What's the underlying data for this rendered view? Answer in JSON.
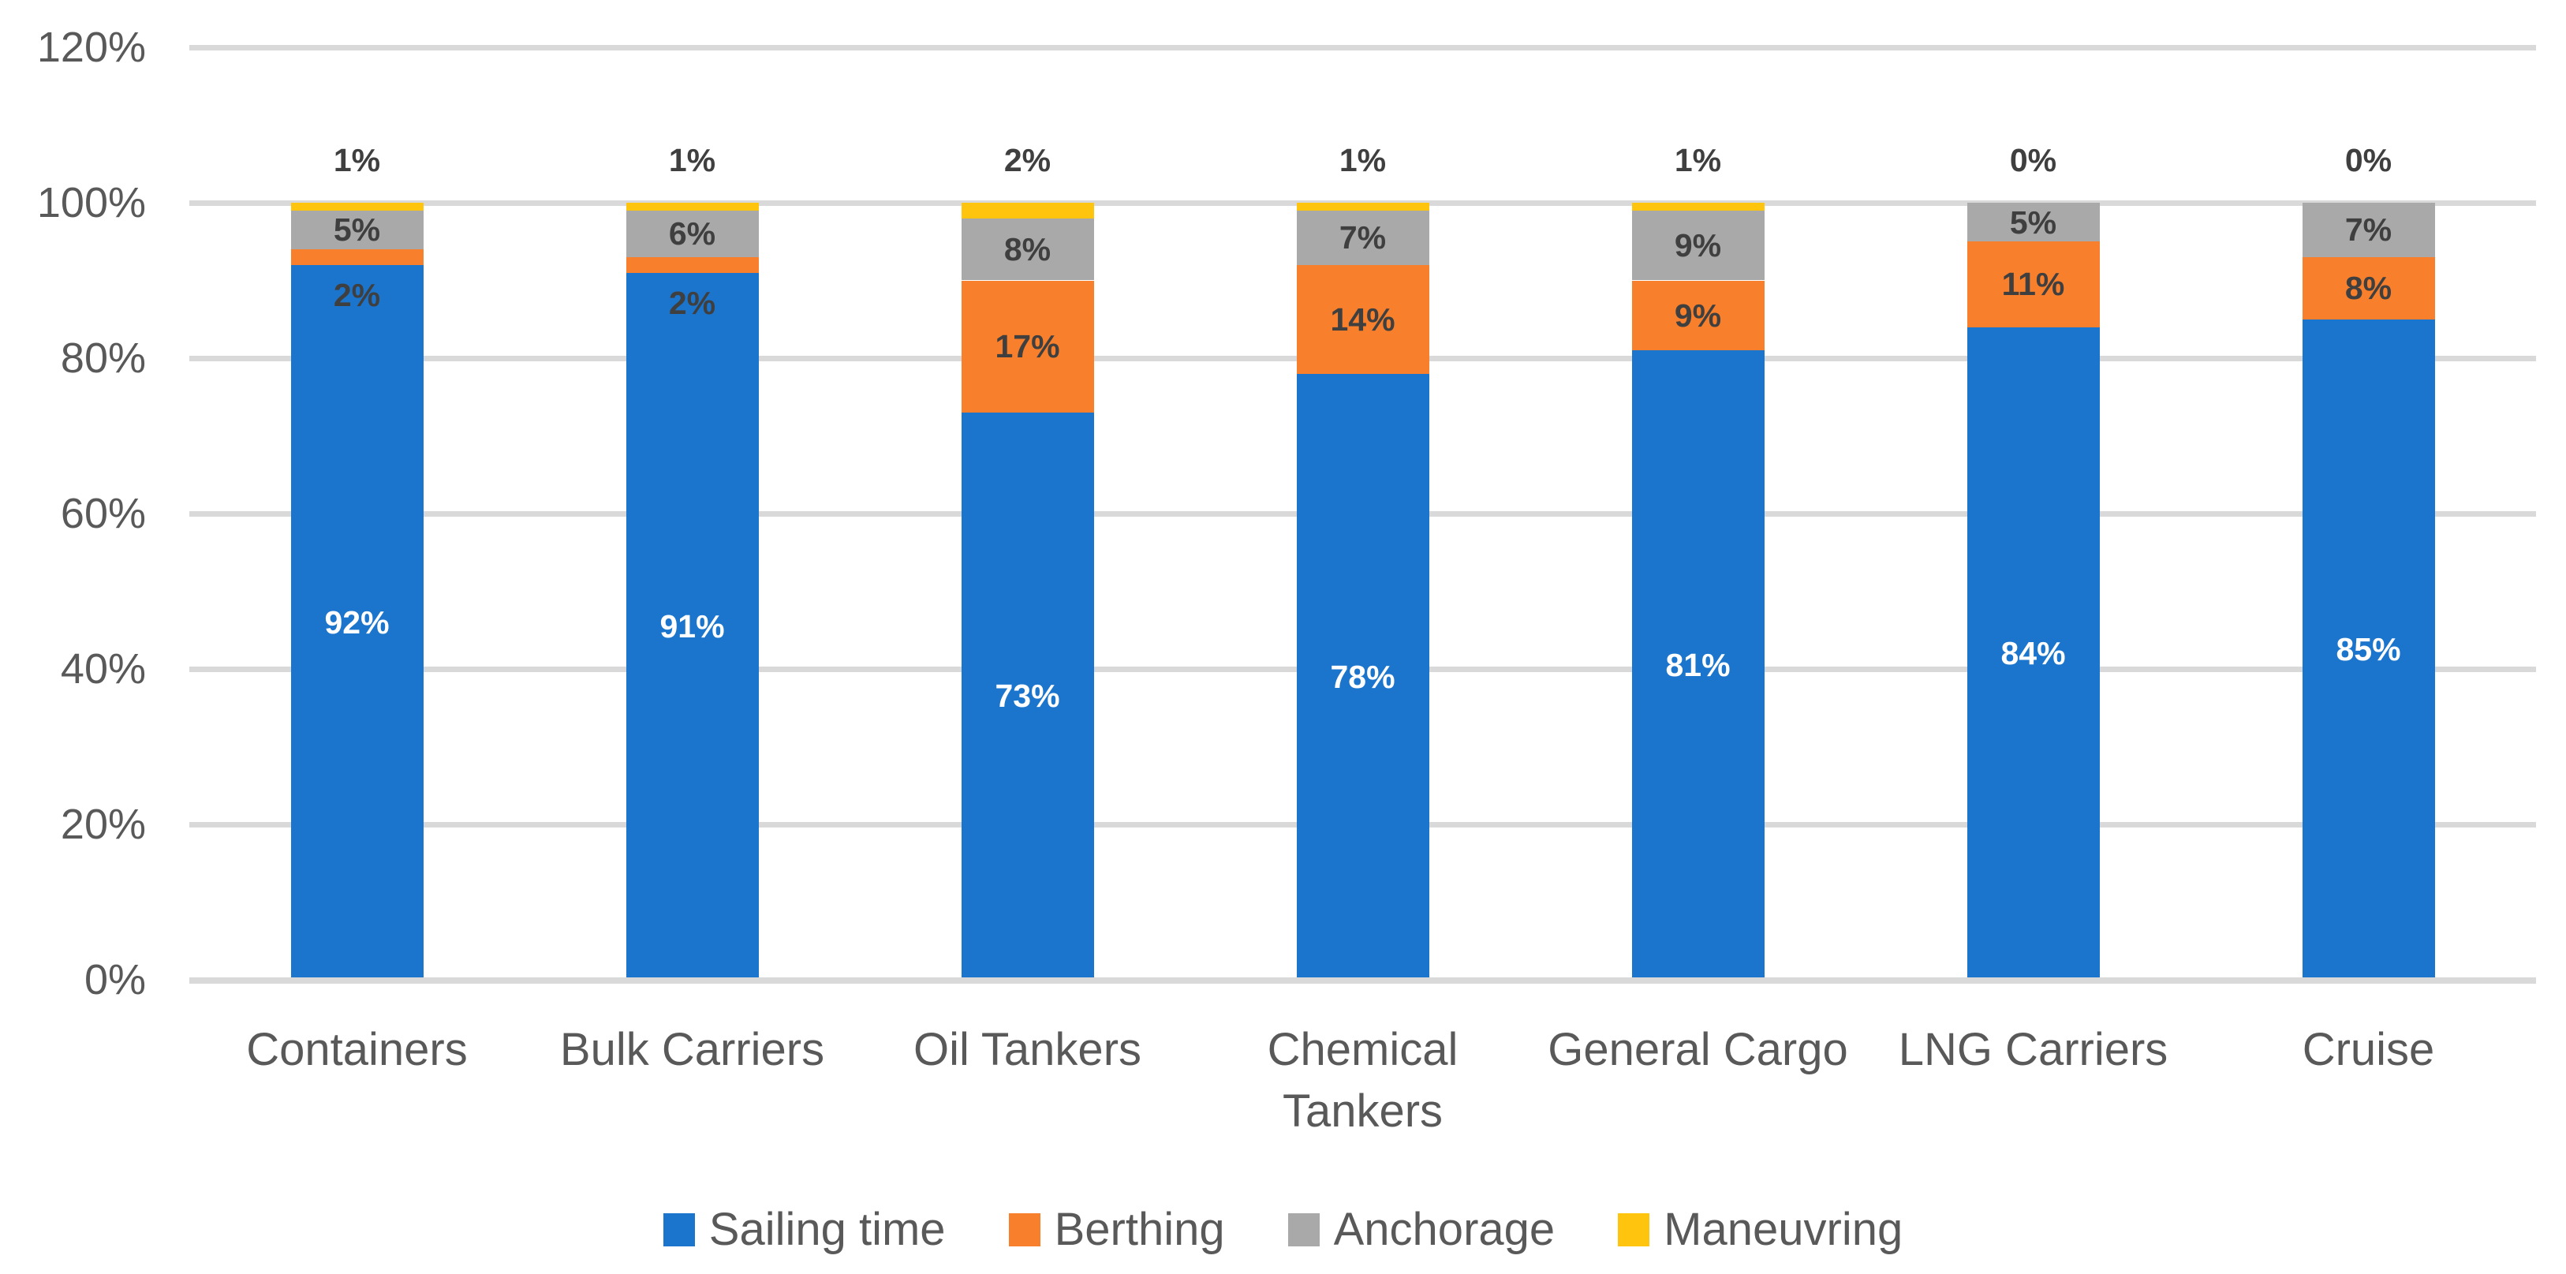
{
  "chart_data": {
    "type": "bar",
    "subtype": "stacked-100-percent",
    "title": "",
    "categories": [
      "Containers",
      "Bulk Carriers",
      "Oil Tankers",
      "Chemical Tankers",
      "General Cargo",
      "LNG Carriers",
      "Cruise"
    ],
    "series": [
      {
        "name": "Sailing time",
        "color": "#1B75CC",
        "values": [
          92,
          91,
          73,
          78,
          81,
          84,
          85
        ]
      },
      {
        "name": "Berthing",
        "color": "#F8802C",
        "values": [
          2,
          2,
          17,
          14,
          9,
          11,
          8
        ]
      },
      {
        "name": "Anchorage",
        "color": "#A9A9A9",
        "values": [
          5,
          6,
          8,
          7,
          9,
          5,
          7
        ]
      },
      {
        "name": "Maneuvring",
        "color": "#FFC40E",
        "values": [
          1,
          1,
          2,
          1,
          1,
          0,
          0
        ]
      }
    ],
    "value_suffix": "%",
    "y_axis": {
      "min": 0,
      "max": 120,
      "step": 20,
      "tick_labels": [
        "0%",
        "20%",
        "40%",
        "60%",
        "80%",
        "100%",
        "120%"
      ]
    },
    "xlabel": "",
    "ylabel": "",
    "grid": true,
    "legend_position": "bottom"
  },
  "styles": {
    "background": "#FFFFFF",
    "gridline_color": "#D9D9D9",
    "axis_line_color": "#D9D9D9",
    "axis_text_color": "#595959",
    "data_label_dark": "#3F3F3F",
    "data_label_light": "#FFFFFF"
  }
}
